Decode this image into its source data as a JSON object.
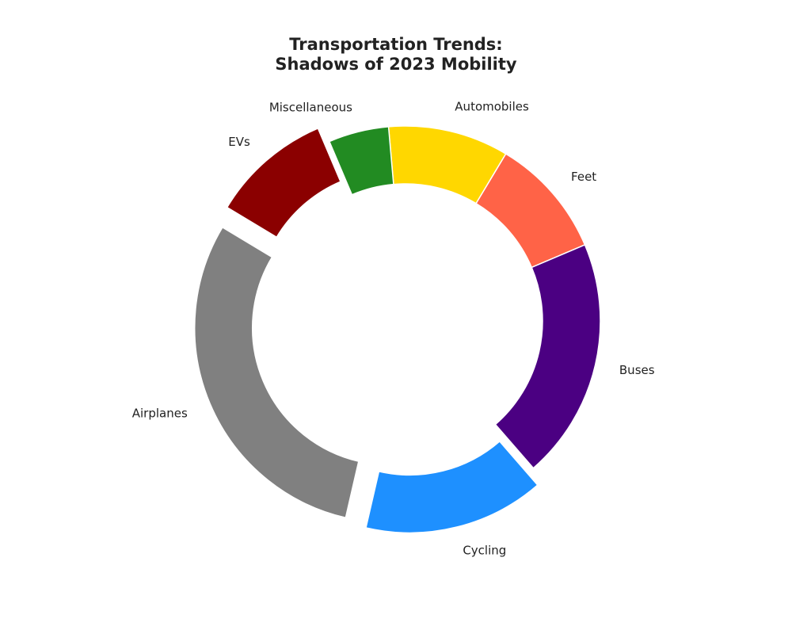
{
  "chart_data": {
    "type": "donut",
    "title_lines": [
      "Transportation Trends:",
      "Shadows of 2023 Mobility"
    ],
    "slices": [
      {
        "label": "Automobiles",
        "value": 10,
        "color": "#FFD700",
        "exploded": false
      },
      {
        "label": "Feet",
        "value": 10,
        "color": "#FF6347",
        "exploded": false
      },
      {
        "label": "Buses",
        "value": 20,
        "color": "#4B0082",
        "exploded": false
      },
      {
        "label": "Cycling",
        "value": 15,
        "color": "#1E90FF",
        "exploded": true
      },
      {
        "label": "Airplanes",
        "value": 30,
        "color": "#808080",
        "exploded": true
      },
      {
        "label": "EVs",
        "value": 10,
        "color": "#8B0000",
        "exploded": true
      },
      {
        "label": "Miscellaneous",
        "value": 5,
        "color": "#228B22",
        "exploded": false
      }
    ],
    "start_angle_deg": 95,
    "direction": "clockwise",
    "legend": "none"
  }
}
